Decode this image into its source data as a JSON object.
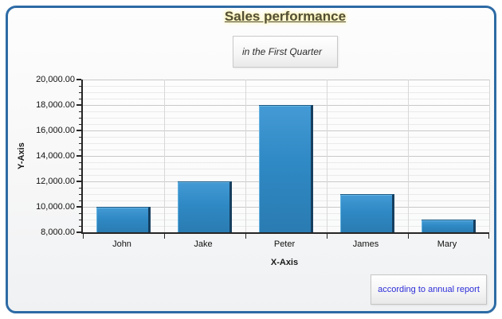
{
  "chart_data": {
    "type": "bar",
    "title": "Sales performance",
    "subtitle": "in the First Quarter",
    "xlabel": "X-Axis",
    "ylabel": "Y-Axis",
    "categories": [
      "John",
      "Jake",
      "Peter",
      "James",
      "Mary"
    ],
    "values": [
      10000,
      12000,
      18000,
      11000,
      9000
    ],
    "ylim": [
      8000,
      20000
    ],
    "y_major_step": 2000,
    "y_minor_step": 500,
    "y_tick_labels": [
      "8,000.00",
      "10,000.00",
      "12,000.00",
      "14,000.00",
      "16,000.00",
      "18,000.00",
      "20,000.00"
    ],
    "grid": true,
    "legend": "none",
    "annotation": "according to annual report",
    "colors": {
      "frame_border": "#2d6ba5",
      "title_text": "#514e35",
      "title_glow": "#faf0b0",
      "bar_top": "#449ad5",
      "bar_bottom": "#2a7cb2",
      "bar_edge": "#173f5f",
      "bar_highlight": "#66b4e2",
      "axis": "#262626",
      "grid_major": "#c9c9c9",
      "grid_minor": "#eaeaea",
      "grid_vertical": "#d8d8d8",
      "annotation_text": "#2e2ed9"
    }
  }
}
